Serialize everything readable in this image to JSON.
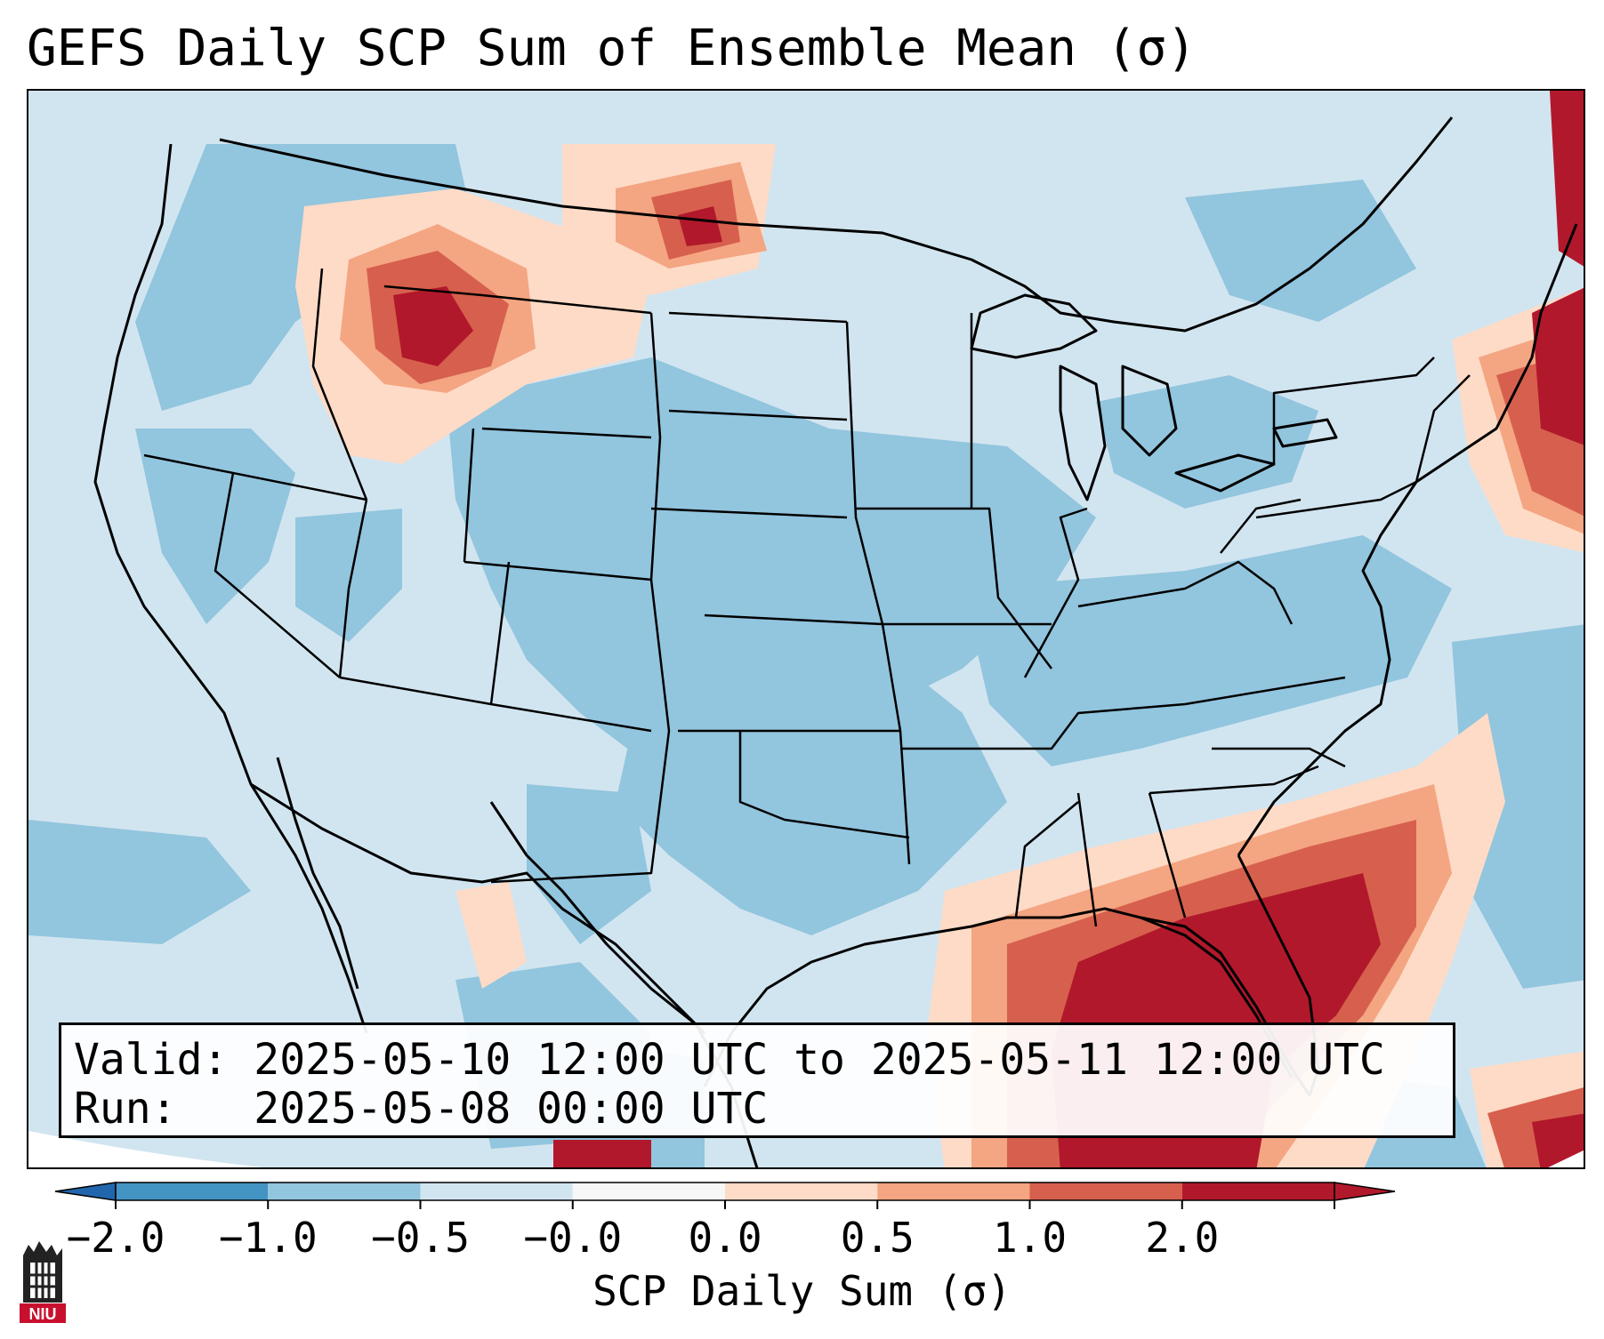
{
  "title": "GEFS Daily SCP Sum of Ensemble Mean (σ)",
  "info": {
    "valid_line": "Valid: 2025-05-10 12:00 UTC to 2025-05-11 12:00 UTC",
    "run_line": "Run:   2025-05-08 00:00 UTC"
  },
  "colorbar": {
    "label": "SCP Daily Sum (σ)",
    "ticks": [
      "−2.0",
      "−1.0",
      "−0.5",
      "−0.0",
      "0.0",
      "0.5",
      "1.0",
      "2.0"
    ],
    "colors": [
      "#4393c3",
      "#92c5de",
      "#d1e5f0",
      "#f7f7f7",
      "#fddbc7",
      "#f4a582",
      "#d6604d",
      "#b2182b"
    ],
    "extend_low": "#2166ac",
    "extend_high": "#b2182b"
  },
  "logo": {
    "text": "NIU",
    "color": "#c8102e"
  }
}
